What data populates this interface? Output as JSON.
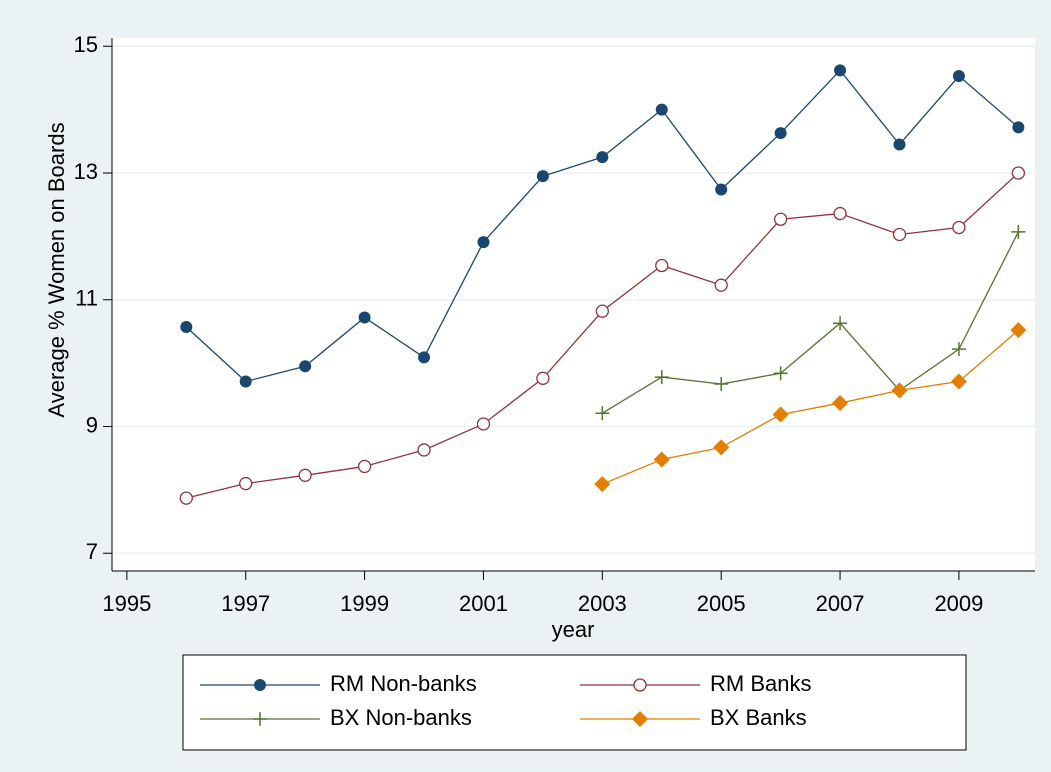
{
  "chart_data": {
    "type": "line",
    "x_label": "year",
    "y_label": "Average % Women on Boards",
    "x": [
      1996,
      1997,
      1998,
      1999,
      2000,
      2001,
      2002,
      2003,
      2004,
      2005,
      2006,
      2007,
      2008,
      2009,
      2010
    ],
    "xlim": [
      1994.75,
      2010.28
    ],
    "xticks": [
      1995,
      1997,
      1999,
      2001,
      2003,
      2005,
      2007,
      2009
    ],
    "ylim": [
      6.72,
      15.13
    ],
    "yticks": [
      7,
      9,
      11,
      13,
      15
    ],
    "grid": true,
    "legend": "bottom",
    "series": [
      {
        "name": "RM Non-banks",
        "color": "#1a476f",
        "marker": "filled-circle",
        "values": [
          10.57,
          9.71,
          9.95,
          10.72,
          10.09,
          11.91,
          12.95,
          13.25,
          14.0,
          12.74,
          13.63,
          14.62,
          13.45,
          14.53,
          13.72
        ]
      },
      {
        "name": "RM Banks",
        "color": "#90353b",
        "marker": "hollow-circle",
        "values": [
          7.87,
          8.1,
          8.23,
          8.37,
          8.63,
          9.04,
          9.76,
          10.82,
          11.54,
          11.23,
          12.27,
          12.36,
          12.03,
          12.14,
          13.0
        ]
      },
      {
        "name": "BX Non-banks",
        "color": "#55752f",
        "marker": "plus",
        "values": [
          null,
          null,
          null,
          null,
          null,
          null,
          null,
          9.21,
          9.78,
          9.67,
          9.84,
          10.63,
          9.57,
          10.22,
          12.07
        ]
      },
      {
        "name": "BX Banks",
        "color": "#e37e00",
        "marker": "diamond",
        "values": [
          null,
          null,
          null,
          null,
          null,
          null,
          null,
          8.09,
          8.48,
          8.67,
          9.19,
          9.37,
          9.57,
          9.71,
          10.52
        ]
      }
    ]
  }
}
